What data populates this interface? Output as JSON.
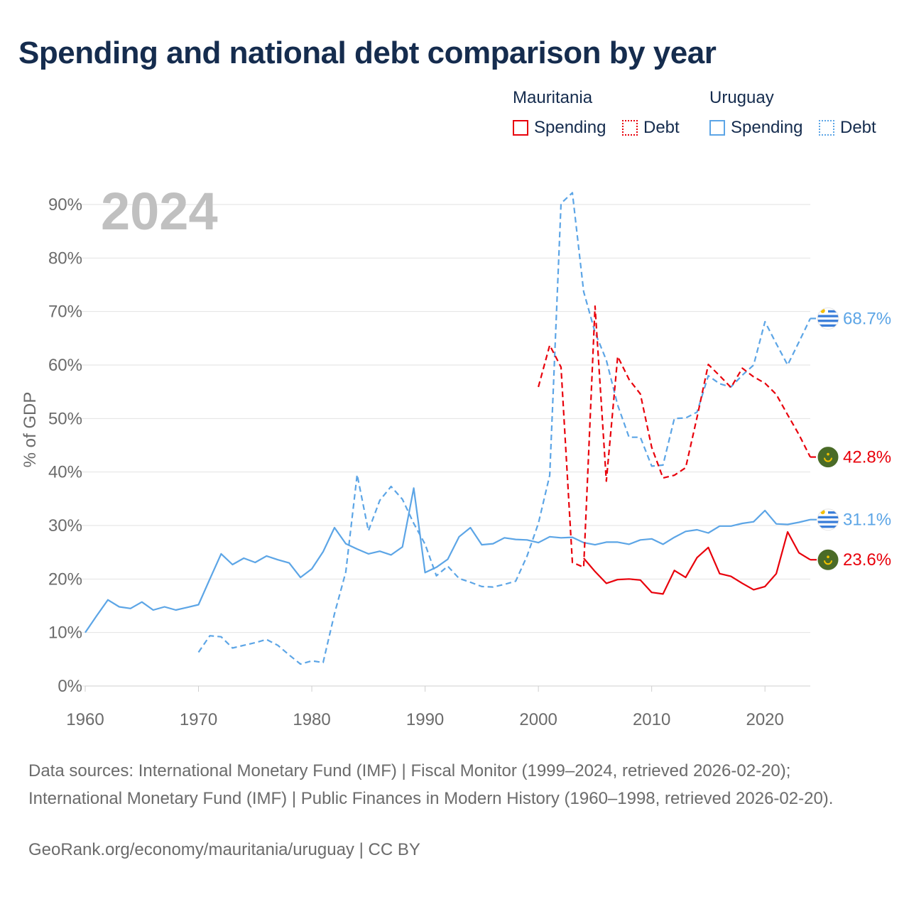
{
  "title": "Spending and national debt comparison by year",
  "legend": {
    "groups": [
      {
        "country": "Mauritania",
        "color": "#e8000b",
        "items": [
          {
            "label": "Spending",
            "style": "solid"
          },
          {
            "label": "Debt",
            "style": "dotted"
          }
        ]
      },
      {
        "country": "Uruguay",
        "color": "#5ca5e6",
        "items": [
          {
            "label": "Spending",
            "style": "solid"
          },
          {
            "label": "Debt",
            "style": "dotted"
          }
        ]
      }
    ]
  },
  "sources_text": "Data sources: International Monetary Fund (IMF) | Fiscal Monitor (1999–2024, retrieved 2026-02-20); International Monetary Fund (IMF) | Public Finances in Modern History (1960–1998, retrieved 2026-02-20).",
  "site_text": "GeoRank.org/economy/mauritania/uruguay | CC BY",
  "chart_data": {
    "type": "line",
    "title": "Spending and national debt comparison by year",
    "year_label": "2024",
    "xlabel": "",
    "ylabel": "% of GDP",
    "xlim": [
      1960,
      2024
    ],
    "ylim": [
      0,
      90
    ],
    "x_ticks": [
      1960,
      1970,
      1980,
      1990,
      2000,
      2010,
      2020
    ],
    "y_ticks": [
      0,
      10,
      20,
      30,
      40,
      50,
      60,
      70,
      80,
      90
    ],
    "y_tick_labels": [
      "0%",
      "10%",
      "20%",
      "30%",
      "40%",
      "50%",
      "60%",
      "70%",
      "80%",
      "90%"
    ],
    "grid": true,
    "series": [
      {
        "name": "Uruguay Spending",
        "country": "Uruguay",
        "measure": "Spending",
        "color": "#5ca5e6",
        "dash": "solid",
        "end_label": "31.1%",
        "flag": "uruguay",
        "points": [
          [
            1960,
            10.0
          ],
          [
            1961,
            13.1
          ],
          [
            1962,
            16.1
          ],
          [
            1963,
            14.8
          ],
          [
            1964,
            14.5
          ],
          [
            1965,
            15.7
          ],
          [
            1966,
            14.2
          ],
          [
            1967,
            14.8
          ],
          [
            1968,
            14.2
          ],
          [
            1969,
            14.7
          ],
          [
            1970,
            15.2
          ],
          [
            1971,
            20.0
          ],
          [
            1972,
            24.7
          ],
          [
            1973,
            22.7
          ],
          [
            1974,
            23.9
          ],
          [
            1975,
            23.1
          ],
          [
            1976,
            24.3
          ],
          [
            1977,
            23.6
          ],
          [
            1978,
            23.0
          ],
          [
            1979,
            20.3
          ],
          [
            1980,
            21.9
          ],
          [
            1981,
            25.1
          ],
          [
            1982,
            29.6
          ],
          [
            1983,
            26.6
          ],
          [
            1984,
            25.6
          ],
          [
            1985,
            24.7
          ],
          [
            1986,
            25.2
          ],
          [
            1987,
            24.5
          ],
          [
            1988,
            26.0
          ],
          [
            1989,
            37.0
          ],
          [
            1990,
            21.2
          ],
          [
            1991,
            22.2
          ],
          [
            1992,
            23.7
          ],
          [
            1993,
            27.9
          ],
          [
            1994,
            29.6
          ],
          [
            1995,
            26.4
          ],
          [
            1996,
            26.6
          ],
          [
            1997,
            27.7
          ],
          [
            1998,
            27.4
          ],
          [
            1999,
            27.3
          ],
          [
            2000,
            26.8
          ],
          [
            2001,
            27.9
          ],
          [
            2002,
            27.7
          ],
          [
            2003,
            27.8
          ],
          [
            2004,
            26.8
          ],
          [
            2005,
            26.4
          ],
          [
            2006,
            26.9
          ],
          [
            2007,
            26.9
          ],
          [
            2008,
            26.5
          ],
          [
            2009,
            27.3
          ],
          [
            2010,
            27.5
          ],
          [
            2011,
            26.5
          ],
          [
            2012,
            27.8
          ],
          [
            2013,
            28.9
          ],
          [
            2014,
            29.2
          ],
          [
            2015,
            28.6
          ],
          [
            2016,
            29.9
          ],
          [
            2017,
            29.9
          ],
          [
            2018,
            30.4
          ],
          [
            2019,
            30.7
          ],
          [
            2020,
            32.8
          ],
          [
            2021,
            30.3
          ],
          [
            2022,
            30.2
          ],
          [
            2023,
            30.6
          ],
          [
            2024,
            31.1
          ]
        ]
      },
      {
        "name": "Uruguay Debt",
        "country": "Uruguay",
        "measure": "Debt",
        "color": "#5ca5e6",
        "dash": "dashed",
        "end_label": "68.7%",
        "flag": "uruguay",
        "points": [
          [
            1970,
            6.3
          ],
          [
            1971,
            9.4
          ],
          [
            1972,
            9.2
          ],
          [
            1973,
            7.1
          ],
          [
            1974,
            7.6
          ],
          [
            1975,
            8.1
          ],
          [
            1976,
            8.7
          ],
          [
            1977,
            7.6
          ],
          [
            1978,
            5.8
          ],
          [
            1979,
            4.1
          ],
          [
            1980,
            4.7
          ],
          [
            1981,
            4.4
          ],
          [
            1982,
            13.5
          ],
          [
            1983,
            21.3
          ],
          [
            1984,
            39.5
          ],
          [
            1985,
            29.0
          ],
          [
            1986,
            34.7
          ],
          [
            1987,
            37.3
          ],
          [
            1988,
            34.9
          ],
          [
            1989,
            30.4
          ],
          [
            1990,
            26.5
          ],
          [
            1991,
            20.6
          ],
          [
            1992,
            22.4
          ],
          [
            1993,
            20.1
          ],
          [
            1994,
            19.4
          ],
          [
            1995,
            18.6
          ],
          [
            1996,
            18.5
          ],
          [
            1997,
            19.0
          ],
          [
            1998,
            19.6
          ],
          [
            1999,
            24.3
          ],
          [
            2000,
            30.4
          ],
          [
            2001,
            39.4
          ],
          [
            2002,
            90.2
          ],
          [
            2003,
            92.2
          ],
          [
            2004,
            73.7
          ],
          [
            2005,
            66.1
          ],
          [
            2006,
            60.9
          ],
          [
            2007,
            52.5
          ],
          [
            2008,
            46.5
          ],
          [
            2009,
            46.5
          ],
          [
            2010,
            41.1
          ],
          [
            2011,
            41.3
          ],
          [
            2012,
            50.0
          ],
          [
            2013,
            50.1
          ],
          [
            2014,
            51.2
          ],
          [
            2015,
            58.0
          ],
          [
            2016,
            56.5
          ],
          [
            2017,
            55.9
          ],
          [
            2018,
            58.1
          ],
          [
            2019,
            60.0
          ],
          [
            2020,
            68.1
          ],
          [
            2021,
            64.0
          ],
          [
            2022,
            60.0
          ],
          [
            2023,
            64.3
          ],
          [
            2024,
            68.7
          ]
        ]
      },
      {
        "name": "Mauritania Spending",
        "country": "Mauritania",
        "measure": "Spending",
        "color": "#e8000b",
        "dash": "solid",
        "end_label": "23.6%",
        "flag": "mauritania",
        "points": [
          [
            2004,
            23.9
          ],
          [
            2005,
            21.4
          ],
          [
            2006,
            19.2
          ],
          [
            2007,
            19.9
          ],
          [
            2008,
            20.0
          ],
          [
            2009,
            19.8
          ],
          [
            2010,
            17.5
          ],
          [
            2011,
            17.2
          ],
          [
            2012,
            21.6
          ],
          [
            2013,
            20.3
          ],
          [
            2014,
            24.0
          ],
          [
            2015,
            25.9
          ],
          [
            2016,
            21.0
          ],
          [
            2017,
            20.5
          ],
          [
            2018,
            19.2
          ],
          [
            2019,
            18.0
          ],
          [
            2020,
            18.6
          ],
          [
            2021,
            21.0
          ],
          [
            2022,
            28.8
          ],
          [
            2023,
            24.9
          ],
          [
            2024,
            23.6
          ]
        ]
      },
      {
        "name": "Mauritania Debt",
        "country": "Mauritania",
        "measure": "Debt",
        "color": "#e8000b",
        "dash": "dashed",
        "end_label": "42.8%",
        "flag": "mauritania",
        "points": [
          [
            2000,
            55.9
          ],
          [
            2001,
            63.7
          ],
          [
            2002,
            59.6
          ],
          [
            2003,
            23.1
          ],
          [
            2004,
            22.2
          ],
          [
            2005,
            71.0
          ],
          [
            2006,
            38.3
          ],
          [
            2007,
            61.6
          ],
          [
            2008,
            57.3
          ],
          [
            2009,
            54.6
          ],
          [
            2010,
            44.6
          ],
          [
            2011,
            38.9
          ],
          [
            2012,
            39.4
          ],
          [
            2013,
            40.8
          ],
          [
            2014,
            50.2
          ],
          [
            2015,
            60.1
          ],
          [
            2016,
            58.0
          ],
          [
            2017,
            55.8
          ],
          [
            2018,
            59.4
          ],
          [
            2019,
            57.8
          ],
          [
            2020,
            56.6
          ],
          [
            2021,
            54.5
          ],
          [
            2022,
            50.7
          ],
          [
            2023,
            47.0
          ],
          [
            2024,
            42.8
          ]
        ]
      }
    ]
  }
}
